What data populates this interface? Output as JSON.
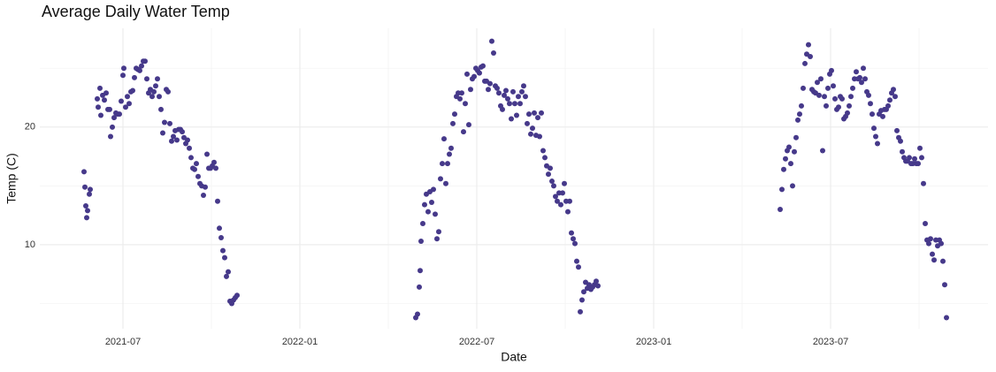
{
  "chart_data": {
    "type": "scatter",
    "title": "Average Daily Water Temp",
    "x_label": "Date",
    "y_label": "Temp (C)",
    "color": "#46398a",
    "grid": true,
    "xlim": [
      2021.265,
      2023.945
    ],
    "ylim": [
      2.86,
      28.4
    ],
    "xticks": [
      {
        "value": 2021.5,
        "label": "2021-07"
      },
      {
        "value": 2022,
        "label": "2022-01"
      },
      {
        "value": 2022.5,
        "label": "2022-07"
      },
      {
        "value": 2023,
        "label": "2023-01"
      },
      {
        "value": 2023.5,
        "label": "2023-07"
      }
    ],
    "yticks": [
      10,
      20
    ],
    "x": [
      2021.39,
      2021.3925,
      2021.395,
      2021.3975,
      2021.4,
      2021.405,
      2021.4075,
      2021.4275,
      2021.43,
      2021.435,
      2021.4375,
      2021.4425,
      2021.4475,
      2021.4525,
      2021.4575,
      2021.4625,
      2021.465,
      2021.47,
      2021.475,
      2021.48,
      2021.485,
      2021.49,
      2021.495,
      2021.5,
      2021.5025,
      2021.5075,
      2021.5125,
      2021.5175,
      2021.5225,
      2021.5275,
      2021.5325,
      2021.5375,
      2021.5425,
      2021.5475,
      2021.5525,
      2021.5575,
      2021.5625,
      2021.5675,
      2021.5725,
      2021.5775,
      2021.5825,
      2021.5875,
      2021.5925,
      2021.5975,
      2021.6025,
      2021.6075,
      2021.6125,
      2021.6175,
      2021.6225,
      2021.6275,
      2021.6325,
      2021.6375,
      2021.6425,
      2021.6475,
      2021.6525,
      2021.6575,
      2021.6625,
      2021.6675,
      2021.6725,
      2021.6775,
      2021.6825,
      2021.6875,
      2021.6925,
      2021.6975,
      2021.7025,
      2021.7075,
      2021.7125,
      2021.7175,
      2021.7225,
      2021.7275,
      2021.7325,
      2021.7375,
      2021.7425,
      2021.7475,
      2021.7525,
      2021.7575,
      2021.7625,
      2021.7675,
      2021.7725,
      2021.7775,
      2021.7825,
      2021.7875,
      2021.7925,
      2021.7975,
      2021.8025,
      2021.8075,
      2021.8125,
      2021.8175,
      2021.8225,
      2022.3275,
      2022.3325,
      2022.3375,
      2022.34,
      2022.3425,
      2022.3475,
      2022.3525,
      2022.3575,
      2022.3625,
      2022.3675,
      2022.3725,
      2022.3775,
      2022.3825,
      2022.3875,
      2022.3925,
      2022.3975,
      2022.4025,
      2022.4075,
      2022.4125,
      2022.4175,
      2022.4225,
      2022.4275,
      2022.4325,
      2022.4375,
      2022.4425,
      2022.4475,
      2022.4525,
      2022.4575,
      2022.4625,
      2022.4675,
      2022.4725,
      2022.4775,
      2022.4825,
      2022.4875,
      2022.4925,
      2022.4975,
      2022.5025,
      2022.5075,
      2022.5125,
      2022.5175,
      2022.5225,
      2022.5275,
      2022.5325,
      2022.5375,
      2022.5425,
      2022.5475,
      2022.5525,
      2022.5575,
      2022.5625,
      2022.5675,
      2022.5725,
      2022.5775,
      2022.5825,
      2022.5875,
      2022.5925,
      2022.5975,
      2022.6025,
      2022.6075,
      2022.6125,
      2022.6175,
      2022.6225,
      2022.6275,
      2022.6325,
      2022.6375,
      2022.6425,
      2022.6475,
      2022.6525,
      2022.6575,
      2022.6625,
      2022.6675,
      2022.6725,
      2022.6775,
      2022.6825,
      2022.6875,
      2022.6925,
      2022.6975,
      2022.7025,
      2022.7075,
      2022.7125,
      2022.7175,
      2022.7225,
      2022.7275,
      2022.7325,
      2022.7375,
      2022.7425,
      2022.7475,
      2022.7525,
      2022.7575,
      2022.7625,
      2022.7675,
      2022.7725,
      2022.7775,
      2022.7825,
      2022.7875,
      2022.7925,
      2022.7975,
      2022.8025,
      2022.8075,
      2022.8125,
      2022.8175,
      2022.8225,
      2022.8275,
      2022.8325,
      2022.8375,
      2022.8425,
      2023.3575,
      2023.3625,
      2023.3675,
      2023.3725,
      2023.3775,
      2023.3825,
      2023.3875,
      2023.3925,
      2023.3975,
      2023.4025,
      2023.4075,
      2023.4125,
      2023.4175,
      2023.4225,
      2023.4275,
      2023.4325,
      2023.4375,
      2023.4425,
      2023.4475,
      2023.4525,
      2023.4575,
      2023.4625,
      2023.4675,
      2023.4725,
      2023.4775,
      2023.4825,
      2023.4875,
      2023.4925,
      2023.4975,
      2023.5025,
      2023.5075,
      2023.5125,
      2023.5175,
      2023.5225,
      2023.5275,
      2023.5325,
      2023.5375,
      2023.5425,
      2023.5475,
      2023.5525,
      2023.5575,
      2023.5625,
      2023.5675,
      2023.5725,
      2023.5775,
      2023.5825,
      2023.5875,
      2023.5925,
      2023.5975,
      2023.6025,
      2023.6075,
      2023.6125,
      2023.6175,
      2023.6225,
      2023.6275,
      2023.6325,
      2023.6375,
      2023.6425,
      2023.6475,
      2023.6525,
      2023.6575,
      2023.6625,
      2023.6675,
      2023.6725,
      2023.6775,
      2023.6825,
      2023.6875,
      2023.6925,
      2023.6975,
      2023.7025,
      2023.7075,
      2023.7125,
      2023.7175,
      2023.7225,
      2023.7275,
      2023.7325,
      2023.7375,
      2023.7425,
      2023.7475,
      2023.7525,
      2023.7575,
      2023.7625,
      2023.7675,
      2023.7725,
      2023.7775,
      2023.7825,
      2023.7875,
      2023.7925,
      2023.7975,
      2023.8025,
      2023.8075,
      2023.8125,
      2023.8175,
      2023.8225,
      2023.8275
    ],
    "values": [
      16.2,
      14.9,
      13.3,
      12.3,
      12.9,
      14.3,
      14.7,
      22.4,
      21.7,
      23.3,
      21.0,
      22.7,
      22.3,
      22.9,
      21.5,
      21.5,
      19.2,
      20.0,
      20.8,
      21.2,
      21.1,
      21.1,
      22.2,
      24.4,
      25.0,
      21.7,
      22.6,
      22.0,
      23.0,
      23.1,
      24.2,
      25.0,
      24.9,
      24.8,
      25.2,
      25.6,
      25.6,
      24.1,
      22.9,
      23.2,
      22.6,
      23.0,
      23.5,
      24.1,
      22.6,
      21.5,
      19.5,
      20.4,
      23.2,
      23.0,
      20.3,
      18.8,
      19.2,
      19.7,
      18.9,
      19.8,
      19.8,
      19.6,
      19.1,
      18.6,
      18.9,
      18.2,
      17.4,
      16.5,
      16.4,
      16.9,
      15.8,
      15.2,
      15.0,
      14.2,
      14.9,
      17.7,
      16.5,
      16.5,
      16.7,
      17.0,
      16.5,
      13.7,
      11.4,
      10.6,
      9.5,
      8.9,
      7.3,
      7.7,
      5.2,
      5.0,
      5.3,
      5.5,
      5.7,
      3.8,
      4.1,
      6.4,
      7.8,
      10.3,
      11.8,
      13.4,
      14.3,
      12.8,
      14.5,
      13.6,
      14.7,
      12.6,
      10.5,
      11.1,
      15.6,
      16.9,
      19.0,
      15.2,
      16.9,
      17.7,
      18.2,
      20.3,
      21.1,
      22.6,
      22.9,
      22.4,
      22.9,
      19.6,
      22.0,
      24.5,
      20.2,
      23.2,
      24.1,
      24.3,
      25.0,
      24.8,
      24.6,
      25.1,
      25.2,
      23.9,
      23.9,
      23.2,
      23.7,
      27.3,
      26.3,
      23.5,
      23.3,
      22.9,
      21.8,
      21.5,
      22.7,
      23.1,
      22.4,
      22.0,
      20.7,
      23.0,
      22.0,
      21.0,
      22.6,
      22.0,
      23.0,
      23.5,
      22.6,
      20.3,
      21.1,
      19.4,
      19.9,
      21.2,
      19.3,
      20.8,
      19.2,
      21.2,
      18.0,
      17.4,
      16.7,
      16.0,
      16.5,
      15.4,
      15.0,
      14.1,
      13.7,
      14.4,
      13.4,
      14.4,
      15.2,
      13.7,
      12.8,
      13.7,
      11.0,
      10.5,
      10.1,
      8.6,
      8.1,
      4.3,
      5.3,
      6.0,
      6.8,
      6.3,
      6.6,
      6.2,
      6.4,
      6.6,
      6.9,
      6.5,
      13.0,
      14.7,
      16.4,
      17.3,
      18.0,
      18.3,
      16.9,
      15.0,
      17.9,
      19.1,
      20.6,
      21.1,
      21.8,
      23.3,
      25.4,
      26.2,
      27.0,
      26.0,
      23.2,
      23.0,
      22.9,
      23.8,
      22.7,
      24.1,
      18.0,
      22.6,
      21.8,
      23.3,
      24.5,
      24.8,
      23.5,
      22.4,
      21.5,
      21.7,
      22.6,
      22.4,
      20.7,
      20.9,
      21.2,
      21.8,
      22.6,
      23.3,
      24.1,
      24.7,
      24.1,
      24.2,
      23.8,
      25.0,
      24.1,
      23.0,
      22.7,
      22.0,
      21.1,
      19.9,
      19.2,
      18.6,
      21.1,
      21.4,
      20.9,
      21.5,
      21.5,
      21.8,
      22.3,
      22.9,
      23.2,
      22.6,
      19.7,
      19.1,
      18.8,
      17.9,
      17.4,
      17.1,
      17.1,
      17.4,
      16.9,
      16.9,
      17.3,
      16.9,
      16.9,
      18.2,
      17.4,
      15.2,
      11.8,
      10.4,
      10.1,
      10.5,
      9.2,
      8.7,
      10.4,
      9.9,
      10.4,
      10.1,
      8.6,
      6.6,
      3.8
    ]
  }
}
